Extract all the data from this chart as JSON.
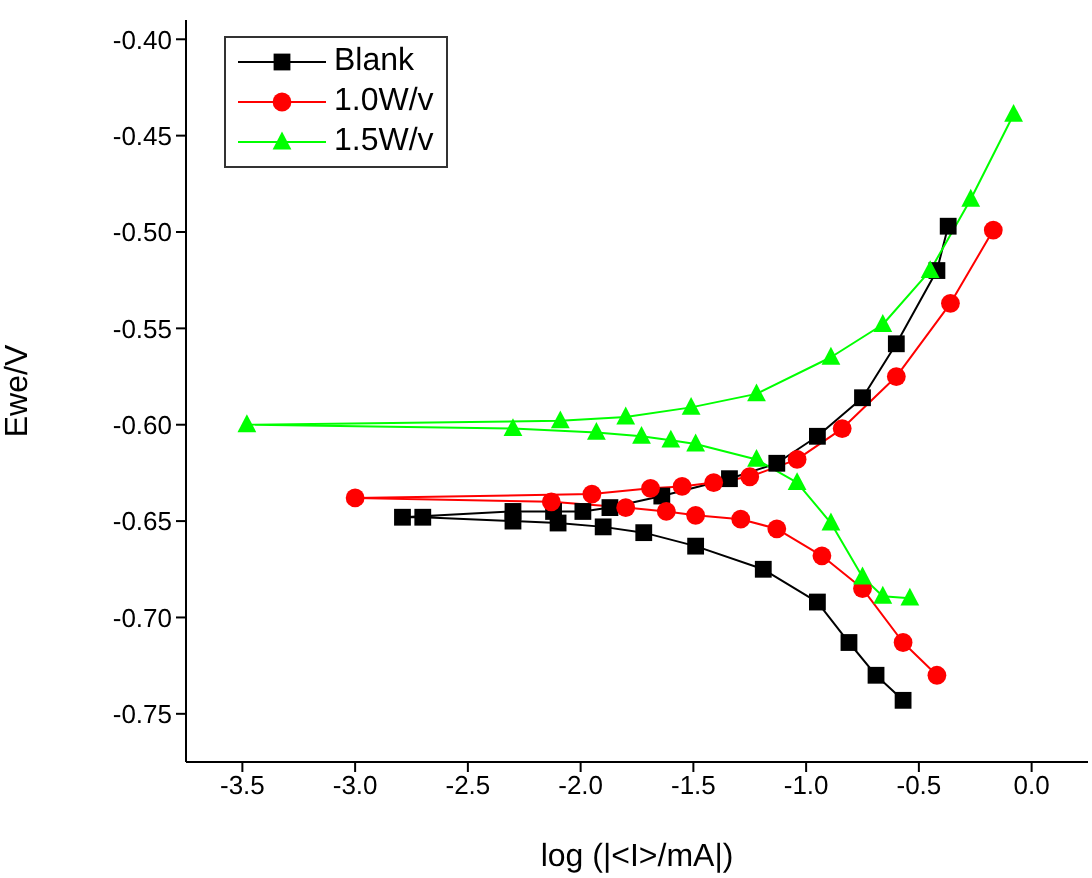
{
  "chart_data": {
    "type": "line",
    "xlabel": "log (|<I>/mA|)",
    "ylabel": "Ewe/V",
    "xlim": [
      -3.75,
      0.25
    ],
    "ylim": [
      -0.775,
      -0.39
    ],
    "xticks": [
      {
        "value": -3.5,
        "label": "-3.5"
      },
      {
        "value": -3,
        "label": "-3.0"
      },
      {
        "value": -2.5,
        "label": "-2.5"
      },
      {
        "value": -2,
        "label": "-2.0"
      },
      {
        "value": -1.5,
        "label": "-1.5"
      },
      {
        "value": -1,
        "label": "-1.0"
      },
      {
        "value": -0.5,
        "label": "-0.5"
      },
      {
        "value": 0,
        "label": "0.0"
      }
    ],
    "yticks": [
      {
        "value": -0.4,
        "label": "-0.40"
      },
      {
        "value": -0.45,
        "label": "-0.45"
      },
      {
        "value": -0.5,
        "label": "-0.50"
      },
      {
        "value": -0.55,
        "label": "-0.55"
      },
      {
        "value": -0.6,
        "label": "-0.60"
      },
      {
        "value": -0.65,
        "label": "-0.65"
      },
      {
        "value": -0.7,
        "label": "-0.70"
      },
      {
        "value": -0.75,
        "label": "-0.75"
      }
    ],
    "grid": false,
    "legend": "top left",
    "line_style": "solid",
    "series": [
      {
        "name": "Blank",
        "color": "#000000",
        "marker": "square",
        "x": [
          -0.57,
          -0.69,
          -0.81,
          -0.95,
          -1.19,
          -1.49,
          -1.72,
          -1.9,
          -2.1,
          -2.3,
          -2.7,
          -2.79,
          -2.3,
          -2.12,
          -1.99,
          -1.87,
          -1.64,
          -1.34,
          -1.13,
          -0.95,
          -0.75,
          -0.6,
          -0.42,
          -0.37
        ],
        "values": [
          -0.743,
          -0.73,
          -0.713,
          -0.692,
          -0.675,
          -0.663,
          -0.656,
          -0.653,
          -0.651,
          -0.65,
          -0.648,
          -0.648,
          -0.645,
          -0.645,
          -0.645,
          -0.643,
          -0.637,
          -0.628,
          -0.62,
          -0.606,
          -0.586,
          -0.558,
          -0.52,
          -0.497
        ]
      },
      {
        "name": "1.0W/v",
        "color": "#ff0000",
        "marker": "circle",
        "x": [
          -0.42,
          -0.57,
          -0.75,
          -0.93,
          -1.13,
          -1.29,
          -1.49,
          -1.62,
          -1.8,
          -2.13,
          -3.0,
          -1.95,
          -1.69,
          -1.55,
          -1.41,
          -1.25,
          -1.04,
          -0.84,
          -0.6,
          -0.36,
          -0.17
        ],
        "values": [
          -0.73,
          -0.713,
          -0.685,
          -0.668,
          -0.654,
          -0.649,
          -0.647,
          -0.645,
          -0.643,
          -0.64,
          -0.638,
          -0.636,
          -0.633,
          -0.632,
          -0.63,
          -0.627,
          -0.618,
          -0.602,
          -0.575,
          -0.537,
          -0.499
        ]
      },
      {
        "name": "1.5W/v",
        "color": "#00ff00",
        "marker": "triangle",
        "x": [
          -0.54,
          -0.66,
          -0.75,
          -0.89,
          -1.04,
          -1.22,
          -1.49,
          -1.6,
          -1.73,
          -1.93,
          -2.3,
          -3.48,
          -2.09,
          -1.8,
          -1.51,
          -1.22,
          -0.89,
          -0.66,
          -0.45,
          -0.27,
          -0.08
        ],
        "values": [
          -0.69,
          -0.689,
          -0.679,
          -0.651,
          -0.63,
          -0.618,
          -0.61,
          -0.608,
          -0.606,
          -0.604,
          -0.602,
          -0.6,
          -0.598,
          -0.596,
          -0.591,
          -0.584,
          -0.565,
          -0.548,
          -0.52,
          -0.483,
          -0.439
        ]
      }
    ]
  }
}
